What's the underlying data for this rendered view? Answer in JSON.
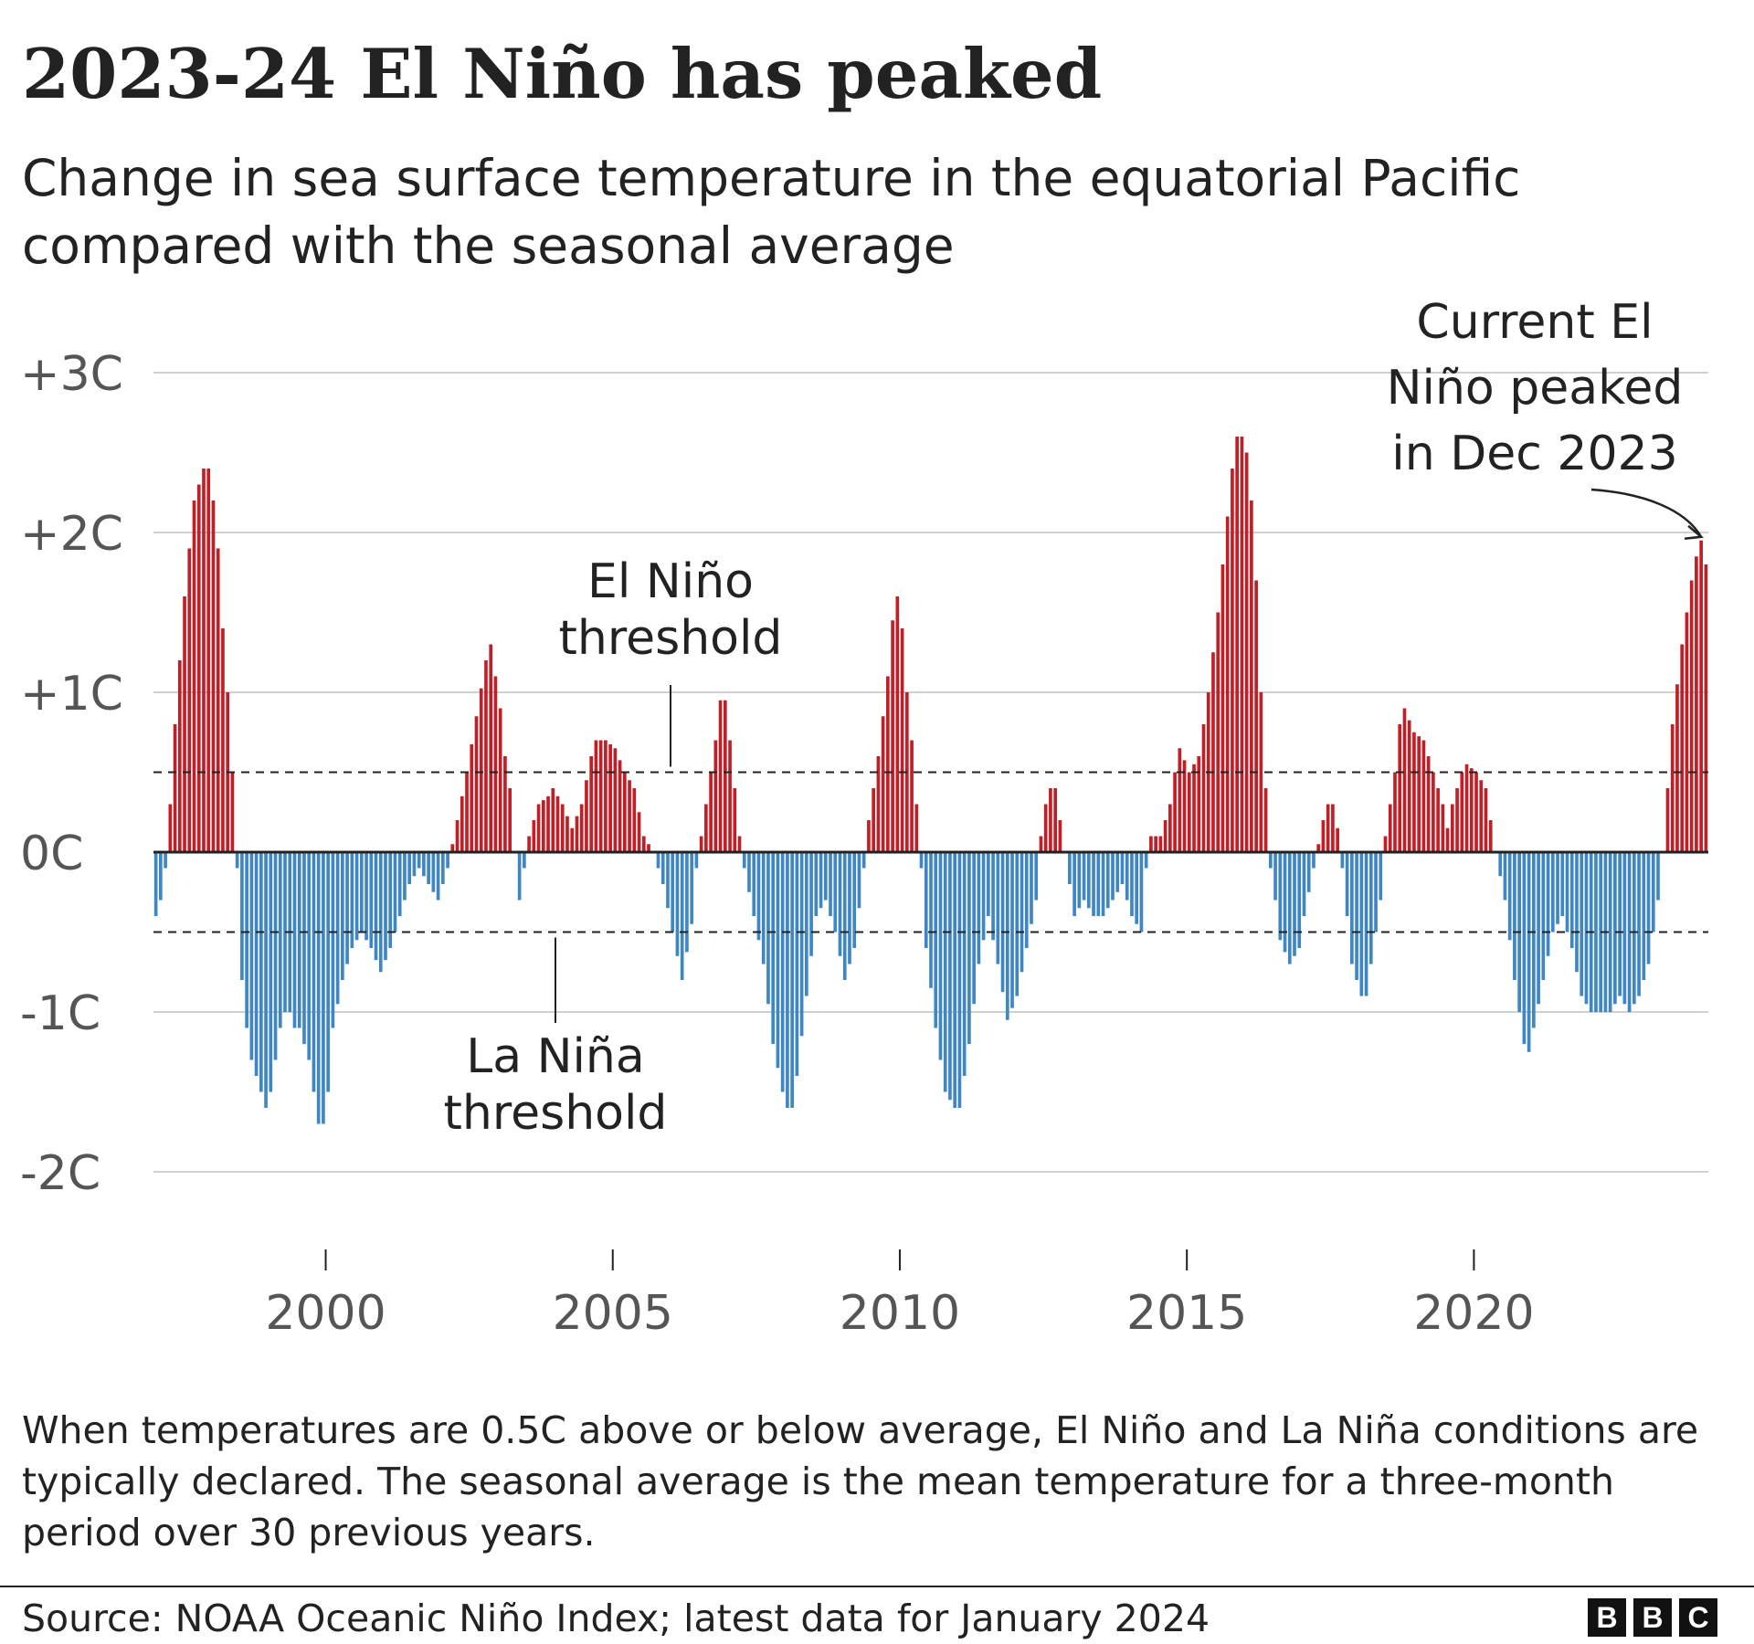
{
  "title": "2023-24 El Niño has peaked",
  "subtitle": "Change in sea surface temperature in the equatorial Pacific compared with the seasonal average",
  "footnote": "When temperatures are 0.5C above or below average, El Niño and La Niña conditions are typically declared. The seasonal average is the mean temperature for a three-month period over 30 previous years.",
  "source": "Source: NOAA Oceanic Niño Index; latest data for January 2024",
  "logo": {
    "letters": [
      "B",
      "B",
      "C"
    ]
  },
  "colors": {
    "positive": "#c11e26",
    "negative": "#3f86c4",
    "text": "#222222",
    "axis_text": "#555555",
    "grid": "#d0d0d0"
  },
  "chart_data": {
    "type": "bar",
    "y_unit": "degrees C anomaly",
    "x_start": "1997-01",
    "x_end": "2024-01",
    "ylim": [
      -2.1,
      3.1
    ],
    "y_ticks": [
      {
        "value": 3,
        "label": "+3C"
      },
      {
        "value": 2,
        "label": "+2C"
      },
      {
        "value": 1,
        "label": "+1C"
      },
      {
        "value": 0,
        "label": "0C"
      },
      {
        "value": -1,
        "label": "-1C"
      },
      {
        "value": -2,
        "label": "-2C"
      }
    ],
    "x_ticks": [
      {
        "value": 2000,
        "label": "2000"
      },
      {
        "value": 2005,
        "label": "2005"
      },
      {
        "value": 2010,
        "label": "2010"
      },
      {
        "value": 2015,
        "label": "2015"
      },
      {
        "value": 2020,
        "label": "2020"
      }
    ],
    "thresholds": [
      {
        "value": 0.5,
        "label_lines": [
          "El Niño",
          "threshold"
        ]
      },
      {
        "value": -0.5,
        "label_lines": [
          "La Niña",
          "threshold"
        ]
      }
    ],
    "annotation": {
      "label_lines": [
        "Current El",
        "Niño peaked",
        "in Dec 2023"
      ],
      "date": "2023-12",
      "value": 1.95
    },
    "grid": true,
    "legend": "none",
    "anchors": [
      [
        "1997-01",
        -0.4
      ],
      [
        "1997-02",
        -0.3
      ],
      [
        "1997-03",
        -0.1
      ],
      [
        "1997-04",
        0.3
      ],
      [
        "1997-05",
        0.8
      ],
      [
        "1997-06",
        1.2
      ],
      [
        "1997-07",
        1.6
      ],
      [
        "1997-08",
        1.9
      ],
      [
        "1997-09",
        2.2
      ],
      [
        "1997-10",
        2.3
      ],
      [
        "1997-11",
        2.4
      ],
      [
        "1997-12",
        2.4
      ],
      [
        "1998-01",
        2.2
      ],
      [
        "1998-02",
        1.9
      ],
      [
        "1998-03",
        1.4
      ],
      [
        "1998-04",
        1.0
      ],
      [
        "1998-05",
        0.5
      ],
      [
        "1998-06",
        -0.1
      ],
      [
        "1998-07",
        -0.8
      ],
      [
        "1998-08",
        -1.1
      ],
      [
        "1998-09",
        -1.3
      ],
      [
        "1998-10",
        -1.4
      ],
      [
        "1998-11",
        -1.5
      ],
      [
        "1998-12",
        -1.6
      ],
      [
        "1999-01",
        -1.5
      ],
      [
        "1999-02",
        -1.3
      ],
      [
        "1999-03",
        -1.1
      ],
      [
        "1999-04",
        -1.0
      ],
      [
        "1999-05",
        -1.0
      ],
      [
        "1999-06",
        -1.1
      ],
      [
        "1999-07",
        -1.1
      ],
      [
        "1999-08",
        -1.2
      ],
      [
        "1999-09",
        -1.3
      ],
      [
        "1999-10",
        -1.5
      ],
      [
        "1999-11",
        -1.7
      ],
      [
        "1999-12",
        -1.7
      ],
      [
        "2000-01",
        -1.5
      ],
      [
        "2000-02",
        -1.1
      ],
      [
        "2000-04",
        -0.8
      ],
      [
        "2000-06",
        -0.6
      ],
      [
        "2000-08",
        -0.5
      ],
      [
        "2000-10",
        -0.6
      ],
      [
        "2000-12",
        -0.75
      ],
      [
        "2001-02",
        -0.6
      ],
      [
        "2001-04",
        -0.4
      ],
      [
        "2001-06",
        -0.2
      ],
      [
        "2001-08",
        -0.1
      ],
      [
        "2001-10",
        -0.2
      ],
      [
        "2001-12",
        -0.3
      ],
      [
        "2002-02",
        -0.1
      ],
      [
        "2002-04",
        0.2
      ],
      [
        "2002-06",
        0.5
      ],
      [
        "2002-08",
        0.85
      ],
      [
        "2002-10",
        1.2
      ],
      [
        "2002-11",
        1.3
      ],
      [
        "2002-12",
        1.1
      ],
      [
        "2003-01",
        0.9
      ],
      [
        "2003-02",
        0.6
      ],
      [
        "2003-03",
        0.4
      ],
      [
        "2003-04",
        0.0
      ],
      [
        "2003-05",
        -0.3
      ],
      [
        "2003-06",
        -0.1
      ],
      [
        "2003-07",
        0.1
      ],
      [
        "2003-08",
        0.2
      ],
      [
        "2003-09",
        0.3
      ],
      [
        "2003-11",
        0.35
      ],
      [
        "2003-12",
        0.4
      ],
      [
        "2004-02",
        0.3
      ],
      [
        "2004-04",
        0.15
      ],
      [
        "2004-06",
        0.3
      ],
      [
        "2004-08",
        0.6
      ],
      [
        "2004-09",
        0.7
      ],
      [
        "2004-11",
        0.7
      ],
      [
        "2005-01",
        0.65
      ],
      [
        "2005-03",
        0.5
      ],
      [
        "2005-05",
        0.4
      ],
      [
        "2005-07",
        0.1
      ],
      [
        "2005-09",
        0.0
      ],
      [
        "2005-11",
        -0.2
      ],
      [
        "2006-01",
        -0.5
      ],
      [
        "2006-03",
        -0.8
      ],
      [
        "2006-05",
        -0.45
      ],
      [
        "2006-06",
        -0.1
      ],
      [
        "2006-07",
        0.1
      ],
      [
        "2006-08",
        0.3
      ],
      [
        "2006-10",
        0.7
      ],
      [
        "2006-11",
        0.95
      ],
      [
        "2006-12",
        0.95
      ],
      [
        "2007-01",
        0.7
      ],
      [
        "2007-02",
        0.4
      ],
      [
        "2007-03",
        0.1
      ],
      [
        "2007-04",
        -0.1
      ],
      [
        "2007-06",
        -0.4
      ],
      [
        "2007-08",
        -0.7
      ],
      [
        "2007-10",
        -1.2
      ],
      [
        "2007-12",
        -1.5
      ],
      [
        "2008-01",
        -1.6
      ],
      [
        "2008-02",
        -1.6
      ],
      [
        "2008-03",
        -1.4
      ],
      [
        "2008-05",
        -0.9
      ],
      [
        "2008-07",
        -0.4
      ],
      [
        "2008-09",
        -0.3
      ],
      [
        "2008-11",
        -0.5
      ],
      [
        "2009-01",
        -0.8
      ],
      [
        "2009-03",
        -0.6
      ],
      [
        "2009-05",
        -0.1
      ],
      [
        "2009-06",
        0.2
      ],
      [
        "2009-08",
        0.6
      ],
      [
        "2009-10",
        1.1
      ],
      [
        "2009-11",
        1.45
      ],
      [
        "2009-12",
        1.6
      ],
      [
        "2010-01",
        1.4
      ],
      [
        "2010-02",
        1.0
      ],
      [
        "2010-03",
        0.7
      ],
      [
        "2010-04",
        0.3
      ],
      [
        "2010-05",
        -0.1
      ],
      [
        "2010-06",
        -0.6
      ],
      [
        "2010-08",
        -1.1
      ],
      [
        "2010-10",
        -1.5
      ],
      [
        "2010-12",
        -1.6
      ],
      [
        "2011-01",
        -1.6
      ],
      [
        "2011-03",
        -1.2
      ],
      [
        "2011-05",
        -0.7
      ],
      [
        "2011-07",
        -0.4
      ],
      [
        "2011-09",
        -0.7
      ],
      [
        "2011-11",
        -1.05
      ],
      [
        "2012-01",
        -0.9
      ],
      [
        "2012-03",
        -0.6
      ],
      [
        "2012-05",
        -0.3
      ],
      [
        "2012-06",
        0.1
      ],
      [
        "2012-07",
        0.3
      ],
      [
        "2012-08",
        0.4
      ],
      [
        "2012-09",
        0.4
      ],
      [
        "2012-10",
        0.2
      ],
      [
        "2012-11",
        0.0
      ],
      [
        "2013-01",
        -0.4
      ],
      [
        "2013-03",
        -0.3
      ],
      [
        "2013-05",
        -0.4
      ],
      [
        "2013-07",
        -0.4
      ],
      [
        "2013-09",
        -0.3
      ],
      [
        "2013-11",
        -0.2
      ],
      [
        "2014-01",
        -0.4
      ],
      [
        "2014-03",
        -0.5
      ],
      [
        "2014-04",
        -0.1
      ],
      [
        "2014-05",
        0.1
      ],
      [
        "2014-07",
        0.1
      ],
      [
        "2014-09",
        0.3
      ],
      [
        "2014-10",
        0.5
      ],
      [
        "2014-11",
        0.65
      ],
      [
        "2015-01",
        0.5
      ],
      [
        "2015-03",
        0.6
      ],
      [
        "2015-05",
        1.0
      ],
      [
        "2015-07",
        1.5
      ],
      [
        "2015-09",
        2.1
      ],
      [
        "2015-10",
        2.4
      ],
      [
        "2015-11",
        2.6
      ],
      [
        "2015-12",
        2.6
      ],
      [
        "2016-01",
        2.5
      ],
      [
        "2016-02",
        2.2
      ],
      [
        "2016-03",
        1.7
      ],
      [
        "2016-04",
        1.0
      ],
      [
        "2016-05",
        0.4
      ],
      [
        "2016-06",
        -0.1
      ],
      [
        "2016-07",
        -0.3
      ],
      [
        "2016-08",
        -0.55
      ],
      [
        "2016-10",
        -0.7
      ],
      [
        "2016-12",
        -0.6
      ],
      [
        "2017-01",
        -0.4
      ],
      [
        "2017-03",
        -0.1
      ],
      [
        "2017-05",
        0.2
      ],
      [
        "2017-06",
        0.3
      ],
      [
        "2017-07",
        0.3
      ],
      [
        "2017-08",
        0.15
      ],
      [
        "2017-09",
        -0.1
      ],
      [
        "2017-11",
        -0.7
      ],
      [
        "2018-01",
        -0.9
      ],
      [
        "2018-02",
        -0.9
      ],
      [
        "2018-03",
        -0.7
      ],
      [
        "2018-05",
        -0.3
      ],
      [
        "2018-06",
        0.1
      ],
      [
        "2018-08",
        0.5
      ],
      [
        "2018-09",
        0.8
      ],
      [
        "2018-10",
        0.9
      ],
      [
        "2018-12",
        0.75
      ],
      [
        "2019-02",
        0.7
      ],
      [
        "2019-04",
        0.5
      ],
      [
        "2019-06",
        0.3
      ],
      [
        "2019-07",
        0.15
      ],
      [
        "2019-08",
        0.3
      ],
      [
        "2019-10",
        0.5
      ],
      [
        "2019-11",
        0.55
      ],
      [
        "2020-01",
        0.5
      ],
      [
        "2020-03",
        0.4
      ],
      [
        "2020-05",
        0.0
      ],
      [
        "2020-07",
        -0.3
      ],
      [
        "2020-09",
        -0.8
      ],
      [
        "2020-11",
        -1.2
      ],
      [
        "2020-12",
        -1.25
      ],
      [
        "2021-01",
        -1.1
      ],
      [
        "2021-03",
        -0.8
      ],
      [
        "2021-05",
        -0.5
      ],
      [
        "2021-07",
        -0.4
      ],
      [
        "2021-09",
        -0.6
      ],
      [
        "2021-11",
        -0.9
      ],
      [
        "2022-01",
        -1.0
      ],
      [
        "2022-03",
        -1.0
      ],
      [
        "2022-05",
        -1.0
      ],
      [
        "2022-07",
        -0.9
      ],
      [
        "2022-09",
        -1.0
      ],
      [
        "2022-11",
        -0.9
      ],
      [
        "2023-01",
        -0.7
      ],
      [
        "2023-03",
        -0.3
      ],
      [
        "2023-04",
        0.0
      ],
      [
        "2023-05",
        0.4
      ],
      [
        "2023-06",
        0.8
      ],
      [
        "2023-08",
        1.3
      ],
      [
        "2023-10",
        1.7
      ],
      [
        "2023-11",
        1.85
      ],
      [
        "2023-12",
        1.95
      ],
      [
        "2024-01",
        1.8
      ]
    ]
  }
}
